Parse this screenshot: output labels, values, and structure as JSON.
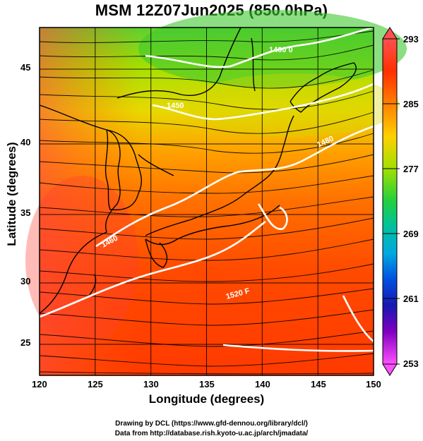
{
  "title": "MSM 12Z07Jun2025 (850.0hPa)",
  "axes": {
    "xlabel": "Longitude (degrees)",
    "ylabel": "Latitude  (degrees)",
    "x_ticks": [
      "120",
      "125",
      "130",
      "135",
      "140",
      "145",
      "150"
    ],
    "y_ticks": [
      "45",
      "40",
      "35",
      "30",
      "25"
    ]
  },
  "colorbar": {
    "ticks": [
      "293",
      "285",
      "277",
      "269",
      "261",
      "253"
    ],
    "colors": [
      "#ff6a6a",
      "#ff3000",
      "#ff7a00",
      "#ffb000",
      "#e8e000",
      "#90e000",
      "#20d040",
      "#00c0a0",
      "#00a0e0",
      "#0050e0",
      "#1010b0",
      "#8000c0",
      "#ff60ff"
    ]
  },
  "contour_labels": [
    "1400 0",
    "1450",
    "1460",
    "1480",
    "1520 F"
  ],
  "credits": {
    "line1": "Drawing by DCL (https://www.gfd-dennou.org/library/dcl/)",
    "line2": "Data from http://database.rish.kyoto-u.ac.jp/arch/jmadata/"
  }
}
